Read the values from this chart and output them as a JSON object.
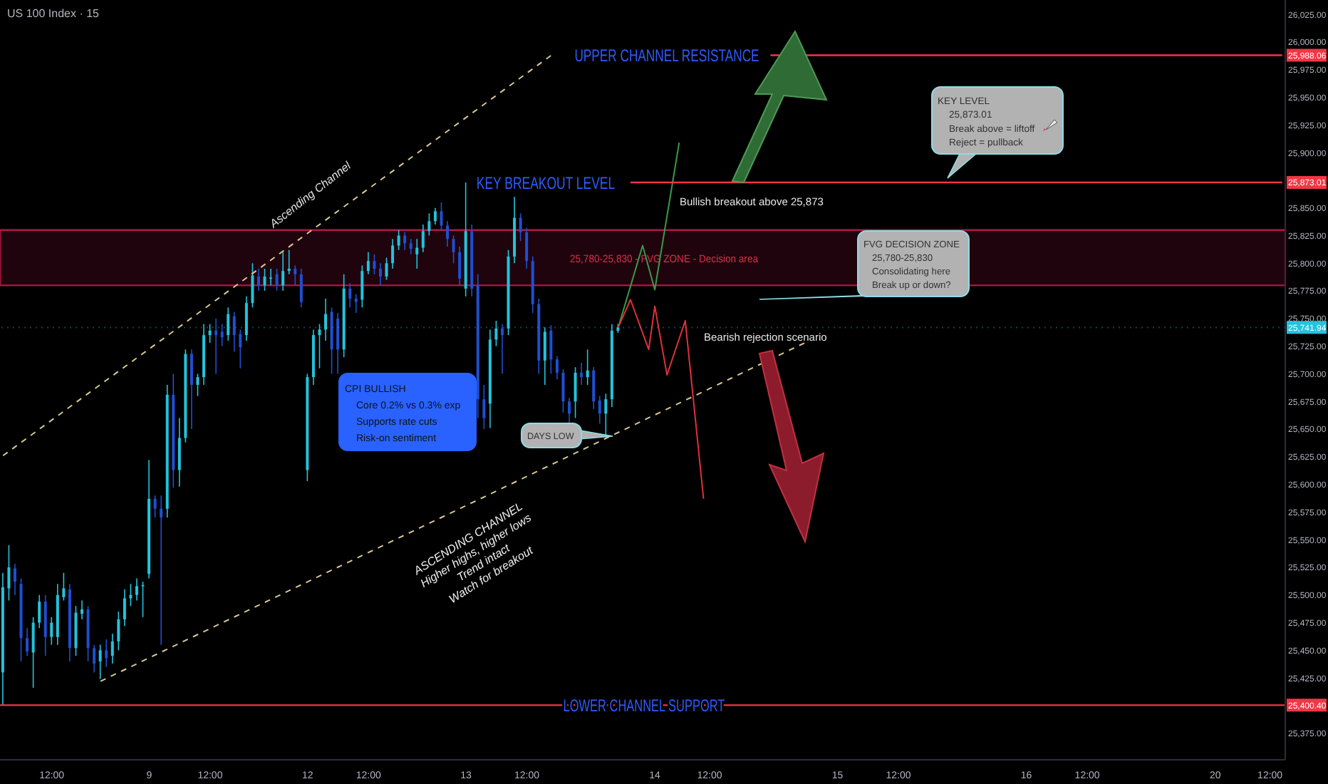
{
  "chart_data": {
    "type": "candlestick",
    "title": "US 100 Index · 15",
    "categories": [
      null,
      null,
      null,
      null,
      null,
      null,
      null,
      null,
      "12:00",
      null,
      null,
      null,
      null,
      null,
      null,
      null,
      null,
      null,
      null,
      null,
      null,
      null,
      null,
      null,
      "9",
      null,
      null,
      null,
      null,
      null,
      null,
      null,
      null,
      null,
      "12:00",
      null,
      null,
      null,
      null,
      null,
      null,
      null,
      null,
      null,
      null,
      null,
      null,
      null,
      null,
      null,
      "12",
      null,
      null,
      null,
      null,
      null,
      null,
      null,
      null,
      null,
      "12:00",
      null,
      null,
      null,
      null,
      null,
      null,
      null,
      null,
      null,
      null,
      null,
      null,
      null,
      null,
      null,
      "13",
      null,
      null,
      null,
      null,
      null,
      null,
      null,
      null,
      null,
      "12:00",
      null,
      null,
      null,
      null,
      null,
      null,
      null,
      null,
      null,
      null,
      null,
      null,
      null,
      null,
      null,
      null,
      null,
      null,
      null,
      null,
      "14",
      null,
      null,
      null,
      null,
      null,
      null,
      null,
      null,
      "12:00",
      null,
      null,
      null,
      null,
      null,
      null,
      null,
      null,
      null,
      null,
      null,
      null,
      null,
      null,
      null,
      null,
      null,
      null,
      null,
      null,
      "15",
      null,
      null,
      null,
      null,
      null,
      null,
      null,
      null,
      null,
      "12:00",
      null,
      null,
      null,
      null,
      null,
      null,
      null,
      null,
      null,
      null,
      null,
      null,
      null,
      null,
      null,
      null,
      null,
      null,
      null,
      null,
      "16",
      null,
      null,
      null,
      null,
      null,
      null,
      null,
      null,
      null,
      "12:00",
      null,
      null,
      null,
      null,
      null,
      null,
      null,
      null,
      null,
      null,
      null,
      null,
      null,
      null,
      null,
      null,
      null,
      null,
      null,
      null,
      "20",
      null,
      null,
      null,
      null,
      null,
      null,
      null,
      null,
      "12:00",
      null,
      null
    ],
    "ohlc": [
      [
        25430,
        25520,
        25400,
        25507
      ],
      [
        25506,
        25545,
        25495,
        25525
      ],
      [
        25524,
        25528,
        25500,
        25512
      ],
      [
        25510,
        25515,
        25440,
        25461
      ],
      [
        25461,
        25470,
        25445,
        25449
      ],
      [
        25448,
        25480,
        25416,
        25475
      ],
      [
        25475,
        25500,
        25470,
        25494
      ],
      [
        25494,
        25500,
        25445,
        25462
      ],
      [
        25462,
        25480,
        25455,
        25475
      ],
      [
        25462,
        25510,
        25455,
        25500
      ],
      [
        25498,
        25520,
        25495,
        25506
      ],
      [
        25505,
        25510,
        25440,
        25452
      ],
      [
        25452,
        25490,
        25445,
        25484
      ],
      [
        25483,
        25495,
        25478,
        25487
      ],
      [
        25487,
        25490,
        25440,
        25452
      ],
      [
        25452,
        25455,
        25430,
        25438
      ],
      [
        25440,
        25455,
        25424,
        25450
      ],
      [
        25450,
        25460,
        25435,
        25443
      ],
      [
        25445,
        25465,
        25438,
        25458
      ],
      [
        25458,
        25485,
        25450,
        25478
      ],
      [
        25478,
        25505,
        25472,
        25497
      ],
      [
        25497,
        25510,
        25490,
        25500
      ],
      [
        25500,
        25515,
        25495,
        25508
      ],
      [
        25508,
        25512,
        25480,
        25509
      ],
      [
        25519,
        25622,
        25515,
        25587
      ],
      [
        25587,
        25590,
        25570,
        25578
      ],
      [
        25578,
        25590,
        25455,
        25570
      ],
      [
        25578,
        25690,
        25570,
        25681
      ],
      [
        25681,
        25700,
        25597,
        25613
      ],
      [
        25613,
        25660,
        25598,
        25642
      ],
      [
        25642,
        25722,
        25638,
        25718
      ],
      [
        25718,
        25722,
        25650,
        25690
      ],
      [
        25690,
        25700,
        25680,
        25697
      ],
      [
        25697,
        25745,
        25690,
        25735
      ],
      [
        25735,
        25745,
        25728,
        25739
      ],
      [
        25739,
        25750,
        25700,
        25735
      ],
      [
        25738,
        25745,
        25725,
        25733
      ],
      [
        25735,
        25760,
        25730,
        25754
      ],
      [
        25752,
        25756,
        25720,
        25735
      ],
      [
        25736,
        25740,
        25705,
        25724
      ],
      [
        25735,
        25770,
        25730,
        25764
      ],
      [
        25764,
        25800,
        25760,
        25789
      ],
      [
        25788,
        25795,
        25775,
        25780
      ],
      [
        25780,
        25795,
        25775,
        25788
      ],
      [
        25786,
        25795,
        25780,
        25787
      ],
      [
        25790,
        25795,
        25775,
        25780
      ],
      [
        25780,
        25810,
        25775,
        25793
      ],
      [
        25793,
        25812,
        25790,
        25795
      ],
      [
        25795,
        25798,
        25780,
        25790
      ],
      [
        25790,
        25795,
        25760,
        25765
      ],
      [
        25613,
        25700,
        25603,
        25697
      ],
      [
        25697,
        25740,
        25690,
        25735
      ],
      [
        25735,
        25745,
        25705,
        25740
      ],
      [
        25740,
        25768,
        25730,
        25754
      ],
      [
        25756,
        25760,
        25700,
        25722
      ],
      [
        25750,
        25755,
        25700,
        25722
      ],
      [
        25722,
        25790,
        25715,
        25777
      ],
      [
        25777,
        25782,
        25760,
        25768
      ],
      [
        25768,
        25772,
        25755,
        25765
      ],
      [
        25767,
        25798,
        25760,
        25793
      ],
      [
        25793,
        25810,
        25790,
        25802
      ],
      [
        25802,
        25808,
        25790,
        25795
      ],
      [
        25795,
        25800,
        25780,
        25788
      ],
      [
        25788,
        25805,
        25785,
        25800
      ],
      [
        25800,
        25822,
        25795,
        25816
      ],
      [
        25816,
        25830,
        25812,
        25825
      ],
      [
        25825,
        25828,
        25812,
        25818
      ],
      [
        25818,
        25822,
        25808,
        25813
      ],
      [
        25808,
        25822,
        25795,
        25814
      ],
      [
        25814,
        25835,
        25810,
        25829
      ],
      [
        25829,
        25845,
        25825,
        25838
      ],
      [
        25838,
        25850,
        25835,
        25847
      ],
      [
        25847,
        25855,
        25830,
        25834
      ],
      [
        25834,
        25838,
        25815,
        25822
      ],
      [
        25822,
        25825,
        25800,
        25810
      ],
      [
        25810,
        25815,
        25780,
        25786
      ],
      [
        25777,
        25873,
        25770,
        25829
      ],
      [
        25829,
        25835,
        25770,
        25777
      ],
      [
        25780,
        25790,
        25660,
        25677
      ],
      [
        25677,
        25690,
        25650,
        25660
      ],
      [
        25673,
        25740,
        25651,
        25731
      ],
      [
        25731,
        25748,
        25725,
        25741
      ],
      [
        25741,
        25745,
        25700,
        25735
      ],
      [
        25741,
        25812,
        25735,
        25806
      ],
      [
        25806,
        25860,
        25800,
        25841
      ],
      [
        25841,
        25845,
        25820,
        25828
      ],
      [
        25828,
        25832,
        25795,
        25802
      ],
      [
        25802,
        25806,
        25755,
        25763
      ],
      [
        25763,
        25768,
        25700,
        25712
      ],
      [
        25712,
        25742,
        25690,
        25738
      ],
      [
        25739,
        25744,
        25700,
        25713
      ],
      [
        25713,
        25716,
        25695,
        25701
      ],
      [
        25701,
        25704,
        25665,
        25675
      ],
      [
        25675,
        25678,
        25655,
        25664
      ],
      [
        25675,
        25706,
        25660,
        25701
      ],
      [
        25701,
        25710,
        25690,
        25697
      ],
      [
        25697,
        25722,
        25690,
        25703
      ],
      [
        25703,
        25706,
        25668,
        25675
      ],
      [
        25676,
        25680,
        25655,
        25664
      ],
      [
        25664,
        25682,
        25642,
        25677
      ],
      [
        25677,
        25745,
        25670,
        25739
      ],
      [
        25739,
        25745,
        25737,
        25742
      ],
      null,
      null,
      null,
      null,
      null,
      null,
      null,
      null,
      null,
      null,
      null,
      null,
      null,
      null,
      null,
      null,
      null,
      null,
      null,
      null,
      null,
      null,
      null,
      null,
      null,
      null,
      null,
      null,
      null,
      null,
      null,
      null,
      null,
      null,
      null,
      null,
      null,
      null,
      null,
      null,
      null,
      null,
      null,
      null,
      null,
      null,
      null,
      null,
      null,
      null,
      null,
      null,
      null,
      null,
      null,
      null,
      null,
      null,
      null,
      null,
      null,
      null,
      null,
      null,
      null,
      null,
      null,
      null,
      null,
      null,
      null,
      null,
      null,
      null,
      null,
      null,
      null,
      null,
      null,
      null,
      null,
      null,
      null,
      null,
      null,
      null,
      null,
      null,
      null,
      null,
      null,
      null,
      null,
      null,
      null,
      null,
      null,
      null,
      null,
      null,
      null,
      null,
      null,
      null,
      null,
      null,
      null,
      null,
      null
    ],
    "colors": [
      "#22c4dc",
      "#22c4dc",
      "#1f4fd1",
      "#1f4fd1",
      "#1f4fd1",
      "#22c4dc",
      "#22c4dc",
      "#1f4fd1",
      "#22c4dc",
      "#22c4dc",
      "#22c4dc",
      "#1f4fd1",
      "#22c4dc",
      "#22c4dc",
      "#1f4fd1",
      "#1f4fd1",
      "#22c4dc",
      "#1f4fd1",
      "#22c4dc",
      "#22c4dc",
      "#22c4dc",
      "#22c4dc",
      "#22c4dc",
      "#22c4dc",
      "#22c4dc",
      "#1f4fd1",
      "#1f4fd1",
      "#22c4dc",
      "#1f4fd1",
      "#22c4dc",
      "#22c4dc",
      "#1f4fd1",
      "#22c4dc",
      "#22c4dc",
      "#22c4dc",
      "#1f4fd1",
      "#1f4fd1",
      "#22c4dc",
      "#1f4fd1",
      "#1f4fd1",
      "#22c4dc",
      "#22c4dc",
      "#1f4fd1",
      "#22c4dc",
      "#22c4dc",
      "#1f4fd1",
      "#22c4dc",
      "#22c4dc",
      "#1f4fd1",
      "#1f4fd1",
      "#22c4dc",
      "#22c4dc",
      "#22c4dc",
      "#22c4dc",
      "#1f4fd1",
      "#1f4fd1",
      "#22c4dc",
      "#1f4fd1",
      "#1f4fd1",
      "#22c4dc",
      "#22c4dc",
      "#1f4fd1",
      "#1f4fd1",
      "#22c4dc",
      "#22c4dc",
      "#22c4dc",
      "#1f4fd1",
      "#1f4fd1",
      "#22c4dc",
      "#22c4dc",
      "#22c4dc",
      "#22c4dc",
      "#1f4fd1",
      "#1f4fd1",
      "#1f4fd1",
      "#1f4fd1",
      "#22c4dc",
      "#1f4fd1",
      "#1f4fd1",
      "#1f4fd1",
      "#22c4dc",
      "#22c4dc",
      "#1f4fd1",
      "#22c4dc",
      "#22c4dc",
      "#1f4fd1",
      "#1f4fd1",
      "#1f4fd1",
      "#1f4fd1",
      "#22c4dc",
      "#1f4fd1",
      "#1f4fd1",
      "#1f4fd1",
      "#1f4fd1",
      "#22c4dc",
      "#1f4fd1",
      "#22c4dc",
      "#1f4fd1",
      "#1f4fd1",
      "#22c4dc",
      "#22c4dc",
      "#22c4dc",
      null,
      null,
      null,
      null,
      null,
      null,
      null,
      null,
      null,
      null,
      null,
      null,
      null,
      null,
      null,
      null,
      null,
      null,
      null,
      null,
      null,
      null,
      null,
      null,
      null,
      null,
      null,
      null,
      null,
      null,
      null,
      null,
      null,
      null,
      null,
      null,
      null,
      null,
      null,
      null,
      null,
      null,
      null,
      null,
      null,
      null,
      null,
      null,
      null,
      null,
      null,
      null,
      null,
      null,
      null,
      null,
      null,
      null,
      null,
      null,
      null,
      null,
      null,
      null,
      null,
      null,
      null,
      null,
      null,
      null,
      null,
      null,
      null,
      null,
      null,
      null,
      null,
      null,
      null,
      null,
      null,
      null,
      null,
      null,
      null,
      null,
      null,
      null,
      null,
      null,
      null,
      null,
      null,
      null,
      null,
      null,
      null,
      null,
      null,
      null,
      null,
      null,
      null,
      null,
      null,
      null,
      null,
      null,
      null
    ],
    "series": [
      {
        "type": "line",
        "color": "#d8c890",
        "line_style": "dashed",
        "values": [
          25626,
          null,
          null,
          null,
          null,
          null,
          null,
          null,
          null,
          null,
          null,
          null,
          null,
          null,
          null,
          null,
          null,
          null,
          null,
          null,
          null,
          null,
          null,
          null,
          null,
          null,
          null,
          null,
          null,
          null,
          null,
          null,
          null,
          null,
          null,
          null,
          null,
          null,
          null,
          null,
          null,
          null,
          null,
          null,
          null,
          null,
          null,
          null,
          null,
          null,
          null,
          null,
          null,
          null,
          null,
          null,
          null,
          null,
          null,
          null,
          null,
          null,
          null,
          null,
          null,
          null,
          null,
          null,
          null,
          null,
          null,
          null,
          null,
          null,
          null,
          null,
          null,
          null,
          null,
          null,
          null,
          null,
          null,
          null,
          null,
          null,
          null,
          null,
          null,
          null,
          25988,
          null,
          null,
          null,
          null,
          null,
          null,
          null,
          null,
          null,
          null,
          null,
          null,
          null,
          null,
          null,
          null,
          null,
          null,
          null,
          null,
          null,
          null,
          null,
          null,
          null,
          null,
          null,
          null,
          null,
          null,
          null,
          null,
          null,
          null,
          null,
          null,
          null,
          null,
          null,
          null,
          null,
          null,
          null,
          null,
          null,
          null,
          null,
          null,
          null,
          null,
          null,
          null,
          null,
          null,
          null,
          null,
          null,
          null,
          null,
          null,
          null,
          null,
          null,
          null,
          null,
          null,
          null,
          null,
          null,
          null,
          null,
          null,
          null,
          null,
          null,
          null,
          null,
          null,
          null,
          null,
          null,
          null,
          null,
          null,
          null,
          null,
          null,
          null,
          null,
          null,
          null,
          null,
          null,
          null,
          null,
          null,
          null,
          null,
          null,
          null,
          null,
          null,
          null,
          null,
          null,
          null,
          null,
          null,
          null,
          null,
          null,
          null,
          null,
          null,
          null,
          null,
          null,
          null,
          null,
          null
        ]
      },
      {
        "type": "line",
        "color": "#d8c890",
        "line_style": "dashed",
        "values": [
          null,
          null,
          null,
          null,
          null,
          null,
          null,
          null,
          null,
          null,
          null,
          null,
          null,
          null,
          null,
          null,
          25422,
          null,
          null,
          null,
          null,
          null,
          null,
          null,
          null,
          null,
          null,
          null,
          null,
          null,
          null,
          null,
          null,
          null,
          null,
          null,
          null,
          null,
          null,
          null,
          null,
          null,
          null,
          null,
          null,
          null,
          null,
          null,
          null,
          null,
          null,
          null,
          null,
          null,
          null,
          null,
          null,
          null,
          null,
          null,
          null,
          null,
          null,
          null,
          null,
          null,
          null,
          null,
          null,
          null,
          null,
          null,
          null,
          null,
          null,
          null,
          null,
          null,
          null,
          null,
          null,
          null,
          null,
          null,
          null,
          null,
          null,
          null,
          null,
          null,
          null,
          null,
          null,
          null,
          null,
          null,
          null,
          null,
          null,
          null,
          null,
          null,
          null,
          null,
          null,
          null,
          null,
          null,
          null,
          null,
          null,
          null,
          null,
          null,
          null,
          null,
          null,
          null,
          null,
          null,
          null,
          null,
          null,
          null,
          null,
          null,
          null,
          null,
          null,
          null,
          null,
          null,
          25729,
          null,
          null,
          null,
          null,
          null,
          null,
          null,
          null,
          null,
          null,
          null,
          null,
          null,
          null,
          null,
          null,
          null,
          null,
          null,
          null,
          null,
          null,
          null,
          null,
          null,
          null,
          null,
          null,
          null,
          null,
          null,
          null,
          null,
          null,
          null,
          null,
          null,
          null,
          null,
          null,
          null,
          null,
          null,
          null,
          null,
          null,
          null,
          null,
          null,
          null,
          null,
          null,
          null,
          null,
          null,
          null,
          null,
          null,
          null,
          null,
          null,
          null,
          null,
          null,
          null,
          null,
          null,
          null,
          null,
          null,
          null,
          null,
          null,
          null,
          null,
          null,
          null,
          null
        ]
      },
      {
        "type": "line",
        "color": "#3a9a4a",
        "line_style": "solid",
        "values": [
          null,
          null,
          null,
          null,
          null,
          null,
          null,
          null,
          null,
          null,
          null,
          null,
          null,
          null,
          null,
          null,
          null,
          null,
          null,
          null,
          null,
          null,
          null,
          null,
          null,
          null,
          null,
          null,
          null,
          null,
          null,
          null,
          null,
          null,
          null,
          null,
          null,
          null,
          null,
          null,
          null,
          null,
          null,
          null,
          null,
          null,
          null,
          null,
          null,
          null,
          null,
          null,
          null,
          null,
          null,
          null,
          null,
          null,
          null,
          null,
          null,
          null,
          null,
          null,
          null,
          null,
          null,
          null,
          null,
          null,
          null,
          null,
          null,
          null,
          null,
          null,
          null,
          null,
          null,
          null,
          null,
          null,
          null,
          null,
          null,
          null,
          null,
          null,
          null,
          null,
          null,
          null,
          null,
          null,
          null,
          null,
          null,
          null,
          null,
          null,
          null,
          25742,
          null,
          null,
          null,
          25816,
          null,
          25776,
          null,
          null,
          null,
          25909,
          null,
          null,
          null,
          null,
          null,
          null,
          null,
          null,
          null,
          null,
          null,
          null,
          null,
          null,
          null,
          null,
          null,
          null,
          null,
          null,
          null,
          null,
          null,
          null,
          null,
          null,
          null,
          null,
          null,
          null,
          null,
          null,
          null,
          null,
          null,
          null,
          null,
          null,
          null,
          null,
          null,
          null,
          null,
          null,
          null,
          null,
          null,
          null,
          null,
          null,
          null,
          null,
          null,
          null,
          null,
          null,
          null,
          null,
          null,
          null,
          null,
          null,
          null,
          null,
          null,
          null,
          null,
          null,
          null,
          null,
          null,
          null,
          null,
          null,
          null,
          null,
          null,
          null,
          null,
          null,
          null,
          null,
          null,
          null,
          null,
          null,
          null,
          null,
          null,
          null,
          null,
          null,
          null,
          null,
          null,
          null,
          null,
          null,
          null
        ]
      },
      {
        "type": "line",
        "color": "#e0303a",
        "line_style": "solid",
        "values": [
          null,
          null,
          null,
          null,
          null,
          null,
          null,
          null,
          null,
          null,
          null,
          null,
          null,
          null,
          null,
          null,
          null,
          null,
          null,
          null,
          null,
          null,
          null,
          null,
          null,
          null,
          null,
          null,
          null,
          null,
          null,
          null,
          null,
          null,
          null,
          null,
          null,
          null,
          null,
          null,
          null,
          null,
          null,
          null,
          null,
          null,
          null,
          null,
          null,
          null,
          null,
          null,
          null,
          null,
          null,
          null,
          null,
          null,
          null,
          null,
          null,
          null,
          null,
          null,
          null,
          null,
          null,
          null,
          null,
          null,
          null,
          null,
          null,
          null,
          null,
          null,
          null,
          null,
          null,
          null,
          null,
          null,
          null,
          null,
          null,
          null,
          null,
          null,
          null,
          null,
          null,
          null,
          null,
          null,
          null,
          null,
          null,
          null,
          null,
          null,
          null,
          25742,
          null,
          25767,
          null,
          null,
          25722,
          25761,
          null,
          25699,
          null,
          null,
          25748,
          null,
          null,
          25587,
          null,
          null,
          null,
          null,
          null,
          null,
          null,
          null,
          null,
          null,
          null,
          null,
          null,
          null,
          null,
          null,
          null,
          null,
          null,
          null,
          null,
          null,
          null,
          null,
          null,
          null,
          null,
          null,
          null,
          null,
          null,
          null,
          null,
          null,
          null,
          null,
          null,
          null,
          null,
          null,
          null,
          null,
          null,
          null,
          null,
          null,
          null,
          null,
          null,
          null,
          null,
          null,
          null,
          null,
          null,
          null,
          null,
          null,
          null,
          null,
          null,
          null,
          null,
          null,
          null,
          null,
          null,
          null,
          null,
          null,
          null,
          null,
          null,
          null,
          null,
          null,
          null,
          null,
          null,
          null,
          null,
          null,
          null,
          null,
          null,
          null,
          null,
          null,
          null,
          null,
          null,
          null,
          null,
          null,
          null
        ]
      }
    ],
    "ylim": [
      25351,
      26038
    ],
    "yticks": [
      {
        "value": 25375,
        "label": "25,375.00"
      },
      {
        "value": 25425,
        "label": "25,425.00"
      },
      {
        "value": 25450,
        "label": "25,450.00"
      },
      {
        "value": 25475,
        "label": "25,475.00"
      },
      {
        "value": 25500,
        "label": "25,500.00"
      },
      {
        "value": 25525,
        "label": "25,525.00"
      },
      {
        "value": 25550,
        "label": "25,550.00"
      },
      {
        "value": 25575,
        "label": "25,575.00"
      },
      {
        "value": 25600,
        "label": "25,600.00"
      },
      {
        "value": 25625,
        "label": "25,625.00"
      },
      {
        "value": 25650,
        "label": "25,650.00"
      },
      {
        "value": 25675,
        "label": "25,675.00"
      },
      {
        "value": 25700,
        "label": "25,700.00"
      },
      {
        "value": 25725,
        "label": "25,725.00"
      },
      {
        "value": 25750,
        "label": "25,750.00"
      },
      {
        "value": 25775,
        "label": "25,775.00"
      },
      {
        "value": 25800,
        "label": "25,800.00"
      },
      {
        "value": 25825,
        "label": "25,825.00"
      },
      {
        "value": 25850,
        "label": "25,850.00"
      },
      {
        "value": 25900,
        "label": "25,900.00"
      },
      {
        "value": 25925,
        "label": "25,925.00"
      },
      {
        "value": 25950,
        "label": "25,950.00"
      },
      {
        "value": 25975,
        "label": "25,975.00"
      },
      {
        "value": 26000,
        "label": "26,000.00"
      },
      {
        "value": 26025,
        "label": "26,025.00"
      },
      {
        "value": 25988.06,
        "label": "25,988.06"
      },
      {
        "value": 25873.01,
        "label": "25,873.01"
      },
      {
        "value": 25741.94,
        "label": "25,741.94"
      },
      {
        "value": 25400.4,
        "label": "25,400.40"
      }
    ],
    "ref_lines": [
      {
        "axis": "y",
        "value": 25988.06,
        "label": "UPPER CHANNEL RESISTANCE",
        "color": "#f23645",
        "line_style": "solid"
      },
      {
        "axis": "y",
        "value": 25873.01,
        "label": "KEY BREAKOUT LEVEL",
        "color": "#f23645",
        "line_style": "solid"
      },
      {
        "axis": "y",
        "value": 25400.4,
        "label": "LOWER CHANNEL SUPPORT",
        "color": "#f23645",
        "line_style": "solid"
      },
      {
        "axis": "y",
        "value": 25741.94,
        "color": "#22c4dc",
        "line_style": "dotted"
      }
    ],
    "bands": [
      {
        "axis": "y",
        "from": 25780,
        "to": 25830,
        "label": "25,780-25,830 - FVG ZONE - Decision area",
        "color": "#b3174a"
      }
    ],
    "annotations": [
      "Ascending Channel",
      "Bullish breakout above 25,873",
      "Bearish rejection scenario",
      "CPI BULLISH\nCore 0.2% vs 0.3% exp\nSupports rate cuts\nRisk-on sentiment",
      "DAYS LOW",
      "ASCENDING CHANNEL\nHigher highs, higher lows\nTrend intact\nWatch for breakout",
      "KEY LEVEL\n25,873.01\nBreak above = liftoff\nReject = pullback",
      "FVG DECISION ZONE\n25,780-25,830\nConsolidating here\nBreak up or down?"
    ]
  }
}
